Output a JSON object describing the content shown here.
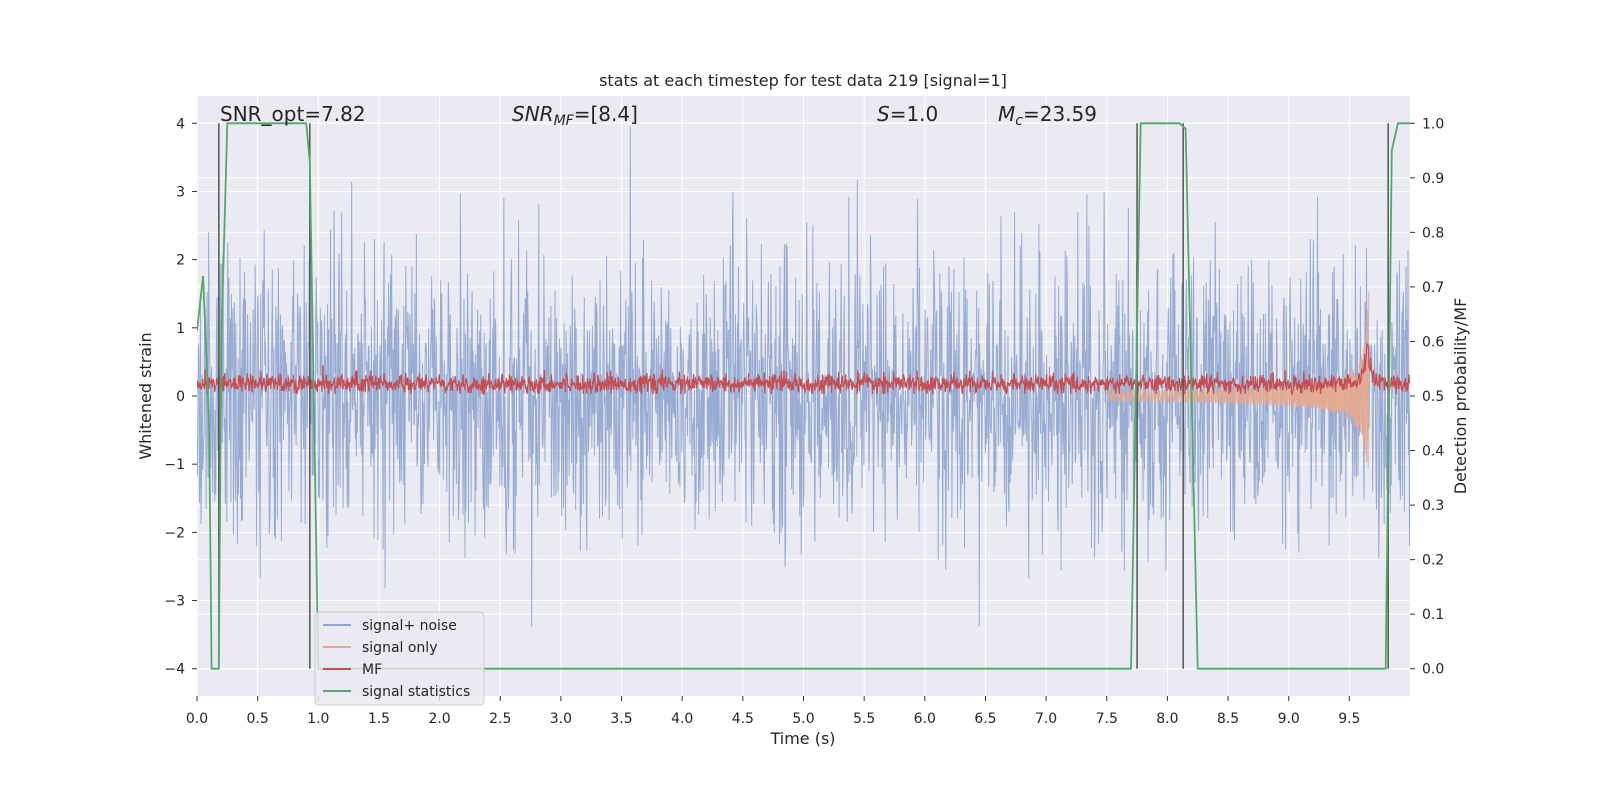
{
  "chart_data": {
    "type": "line",
    "title": "stats at each timestep for test data 219 [signal=1]",
    "xlabel": "Time (s)",
    "ylabel_left": "Whitened strain",
    "ylabel_right": "Detection probability/MF",
    "xlim": [
      0.0,
      10.0
    ],
    "ylim_left": [
      -4.4,
      4.4
    ],
    "ylim_right": [
      -0.05,
      1.05
    ],
    "xticks": [
      "0.0",
      "0.5",
      "1.0",
      "1.5",
      "2.0",
      "2.5",
      "3.0",
      "3.5",
      "4.0",
      "4.5",
      "5.0",
      "5.5",
      "6.0",
      "6.5",
      "7.0",
      "7.5",
      "8.0",
      "8.5",
      "9.0",
      "9.5"
    ],
    "xtick_values": [
      0.0,
      0.5,
      1.0,
      1.5,
      2.0,
      2.5,
      3.0,
      3.5,
      4.0,
      4.5,
      5.0,
      5.5,
      6.0,
      6.5,
      7.0,
      7.5,
      8.0,
      8.5,
      9.0,
      9.5
    ],
    "yticks_left": [
      "−4",
      "−3",
      "−2",
      "−1",
      "0",
      "1",
      "2",
      "3",
      "4"
    ],
    "ytick_values_left": [
      -4,
      -3,
      -2,
      -1,
      0,
      1,
      2,
      3,
      4
    ],
    "yticks_right": [
      "0.0",
      "0.1",
      "0.2",
      "0.3",
      "0.4",
      "0.5",
      "0.6",
      "0.7",
      "0.8",
      "0.9",
      "1.0"
    ],
    "ytick_values_right": [
      0.0,
      0.1,
      0.2,
      0.3,
      0.4,
      0.5,
      0.6,
      0.7,
      0.8,
      0.9,
      1.0
    ],
    "grid": true,
    "legend_position": "bottom-left",
    "annotations": {
      "snr_opt": "SNR_opt=7.82",
      "snr_mf_base": "SNR",
      "snr_mf_sub": "MF",
      "snr_mf_value": "=[8.4]",
      "s_symbol": "S",
      "s_value": "=1.0",
      "mc_base": "M",
      "mc_sub": "c",
      "mc_value": "=23.59"
    },
    "series": [
      {
        "name": "signal+ noise",
        "color": "#8fa5cf",
        "style": "noise",
        "amplitude_std": 1.0,
        "x_range": [
          0.0,
          10.0
        ]
      },
      {
        "name": "signal only",
        "color": "#e8a88c",
        "style": "chirp",
        "x_range": [
          7.5,
          9.66
        ],
        "peak_x": 9.65,
        "peak_amplitude": 1.55
      },
      {
        "name": "MF",
        "color": "#c44e52",
        "style": "band",
        "baseline": 0.18,
        "x_range": [
          0.0,
          10.0
        ],
        "peak_x": 9.65,
        "peak_value": 1.0
      },
      {
        "name": "signal statistics",
        "color": "#55a868",
        "style": "line",
        "axis": "right",
        "x": [
          0.0,
          0.05,
          0.1,
          0.12,
          0.18,
          0.2,
          0.25,
          0.3,
          0.9,
          0.93,
          1.0,
          7.6,
          7.7,
          7.78,
          8.1,
          8.15,
          8.25,
          9.8,
          9.85,
          9.9,
          10.0
        ],
        "y": [
          0.62,
          0.72,
          0.45,
          0.0,
          0.0,
          0.6,
          1.0,
          1.0,
          1.0,
          0.93,
          0.0,
          0.0,
          0.0,
          1.0,
          1.0,
          0.99,
          0.0,
          0.0,
          0.95,
          1.0,
          1.0
        ]
      }
    ],
    "vertical_markers": [
      0.18,
      0.93,
      7.75,
      8.13,
      9.82
    ]
  }
}
